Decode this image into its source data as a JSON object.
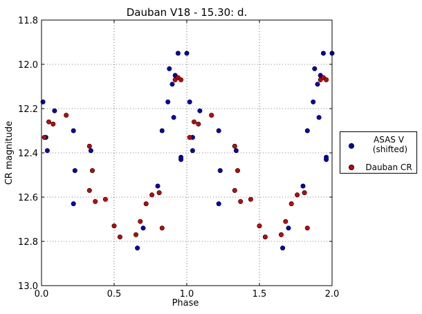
{
  "chart_data": {
    "type": "scatter",
    "title": "Dauban V18 - 15.30: d.",
    "xlabel": "Phase",
    "ylabel": "CR magnitude",
    "xlim": [
      0.0,
      2.0
    ],
    "ylim": [
      13.0,
      11.8
    ],
    "y_inverted": true,
    "grid": true,
    "legend_placement": "outside-right",
    "xticks": [
      "0.0",
      "0.5",
      "1.0",
      "1.5",
      "2.0"
    ],
    "yticks": [
      "11.8",
      "12.0",
      "12.2",
      "12.4",
      "12.6",
      "12.8",
      "13.0"
    ],
    "series": [
      {
        "name": "ASAS V\n (shifted)",
        "color": "#0000bf",
        "points": [
          [
            0.01,
            12.17
          ],
          [
            0.03,
            12.33
          ],
          [
            0.04,
            12.39
          ],
          [
            0.09,
            12.21
          ],
          [
            0.22,
            12.3
          ],
          [
            0.22,
            12.63
          ],
          [
            0.23,
            12.48
          ],
          [
            0.34,
            12.39
          ],
          [
            0.66,
            12.83
          ],
          [
            0.7,
            12.74
          ],
          [
            0.8,
            12.55
          ],
          [
            0.83,
            12.3
          ],
          [
            0.87,
            12.17
          ],
          [
            0.88,
            12.02
          ],
          [
            0.9,
            12.09
          ],
          [
            0.91,
            12.24
          ],
          [
            0.92,
            12.05
          ],
          [
            0.94,
            11.95
          ],
          [
            0.96,
            12.42
          ],
          [
            0.96,
            12.43
          ],
          [
            1.0,
            11.95
          ],
          [
            1.02,
            12.17
          ],
          [
            1.04,
            12.33
          ],
          [
            1.04,
            12.39
          ],
          [
            1.09,
            12.21
          ],
          [
            1.22,
            12.3
          ],
          [
            1.22,
            12.63
          ],
          [
            1.23,
            12.48
          ],
          [
            1.34,
            12.39
          ],
          [
            1.66,
            12.83
          ],
          [
            1.7,
            12.74
          ],
          [
            1.8,
            12.55
          ],
          [
            1.83,
            12.3
          ],
          [
            1.87,
            12.17
          ],
          [
            1.88,
            12.02
          ],
          [
            1.9,
            12.09
          ],
          [
            1.91,
            12.24
          ],
          [
            1.92,
            12.05
          ],
          [
            1.94,
            11.95
          ],
          [
            1.96,
            12.42
          ],
          [
            1.96,
            12.43
          ],
          [
            2.0,
            11.95
          ]
        ]
      },
      {
        "name": "Dauban CR",
        "color": "#cc0000",
        "points": [
          [
            0.02,
            12.33
          ],
          [
            0.05,
            12.26
          ],
          [
            0.08,
            12.27
          ],
          [
            0.17,
            12.23
          ],
          [
            0.33,
            12.57
          ],
          [
            0.33,
            12.37
          ],
          [
            0.35,
            12.48
          ],
          [
            0.37,
            12.62
          ],
          [
            0.44,
            12.61
          ],
          [
            0.5,
            12.73
          ],
          [
            0.54,
            12.78
          ],
          [
            0.65,
            12.77
          ],
          [
            0.68,
            12.71
          ],
          [
            0.72,
            12.63
          ],
          [
            0.76,
            12.59
          ],
          [
            0.81,
            12.58
          ],
          [
            0.83,
            12.74
          ],
          [
            0.92,
            12.07
          ],
          [
            0.94,
            12.06
          ],
          [
            0.96,
            12.07
          ],
          [
            1.02,
            12.33
          ],
          [
            1.05,
            12.26
          ],
          [
            1.08,
            12.27
          ],
          [
            1.17,
            12.23
          ],
          [
            1.33,
            12.57
          ],
          [
            1.33,
            12.37
          ],
          [
            1.35,
            12.48
          ],
          [
            1.37,
            12.62
          ],
          [
            1.44,
            12.61
          ],
          [
            1.5,
            12.73
          ],
          [
            1.54,
            12.78
          ],
          [
            1.65,
            12.77
          ],
          [
            1.68,
            12.71
          ],
          [
            1.72,
            12.63
          ],
          [
            1.76,
            12.59
          ],
          [
            1.81,
            12.58
          ],
          [
            1.83,
            12.74
          ],
          [
            1.92,
            12.07
          ],
          [
            1.94,
            12.06
          ],
          [
            1.96,
            12.07
          ]
        ]
      }
    ]
  }
}
